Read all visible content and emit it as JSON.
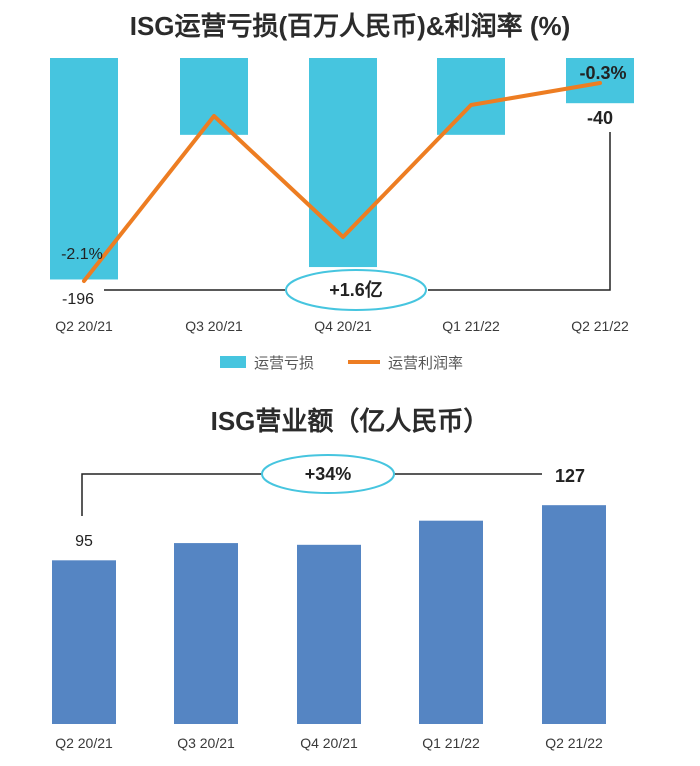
{
  "chart_data": [
    {
      "type": "bar+line",
      "title": "ISG运营亏损(百万人民币)&利润率 (%)",
      "categories": [
        "Q2 20/21",
        "Q3 20/21",
        "Q4 20/21",
        "Q1 21/22",
        "Q2 21/22"
      ],
      "series": [
        {
          "name": "运营亏损",
          "type": "bar",
          "color": "#46c5df",
          "values": [
            -196,
            -68,
            -185,
            -68,
            -40
          ],
          "labels": [
            "-196",
            "",
            "",
            "",
            "-40"
          ]
        },
        {
          "name": "运营利润率",
          "type": "line",
          "color": "#ed7d22",
          "values": [
            -2.1,
            -0.6,
            -1.7,
            -0.5,
            -0.3
          ],
          "labels": [
            "-2.1%",
            "",
            "",
            "",
            "-0.3%"
          ]
        }
      ],
      "callout": "+1.6亿",
      "legend": "bottom"
    },
    {
      "type": "bar",
      "title": "ISG营业额（亿人民币）",
      "categories": [
        "Q2 20/21",
        "Q3 20/21",
        "Q4 20/21",
        "Q1 21/22",
        "Q2 21/22"
      ],
      "series": [
        {
          "name": "ISG营业额",
          "color": "#5585c3",
          "values": [
            95,
            105,
            104,
            118,
            127
          ],
          "labels": [
            "95",
            "",
            "",
            "",
            "127"
          ]
        }
      ],
      "callout": "+34%"
    }
  ]
}
